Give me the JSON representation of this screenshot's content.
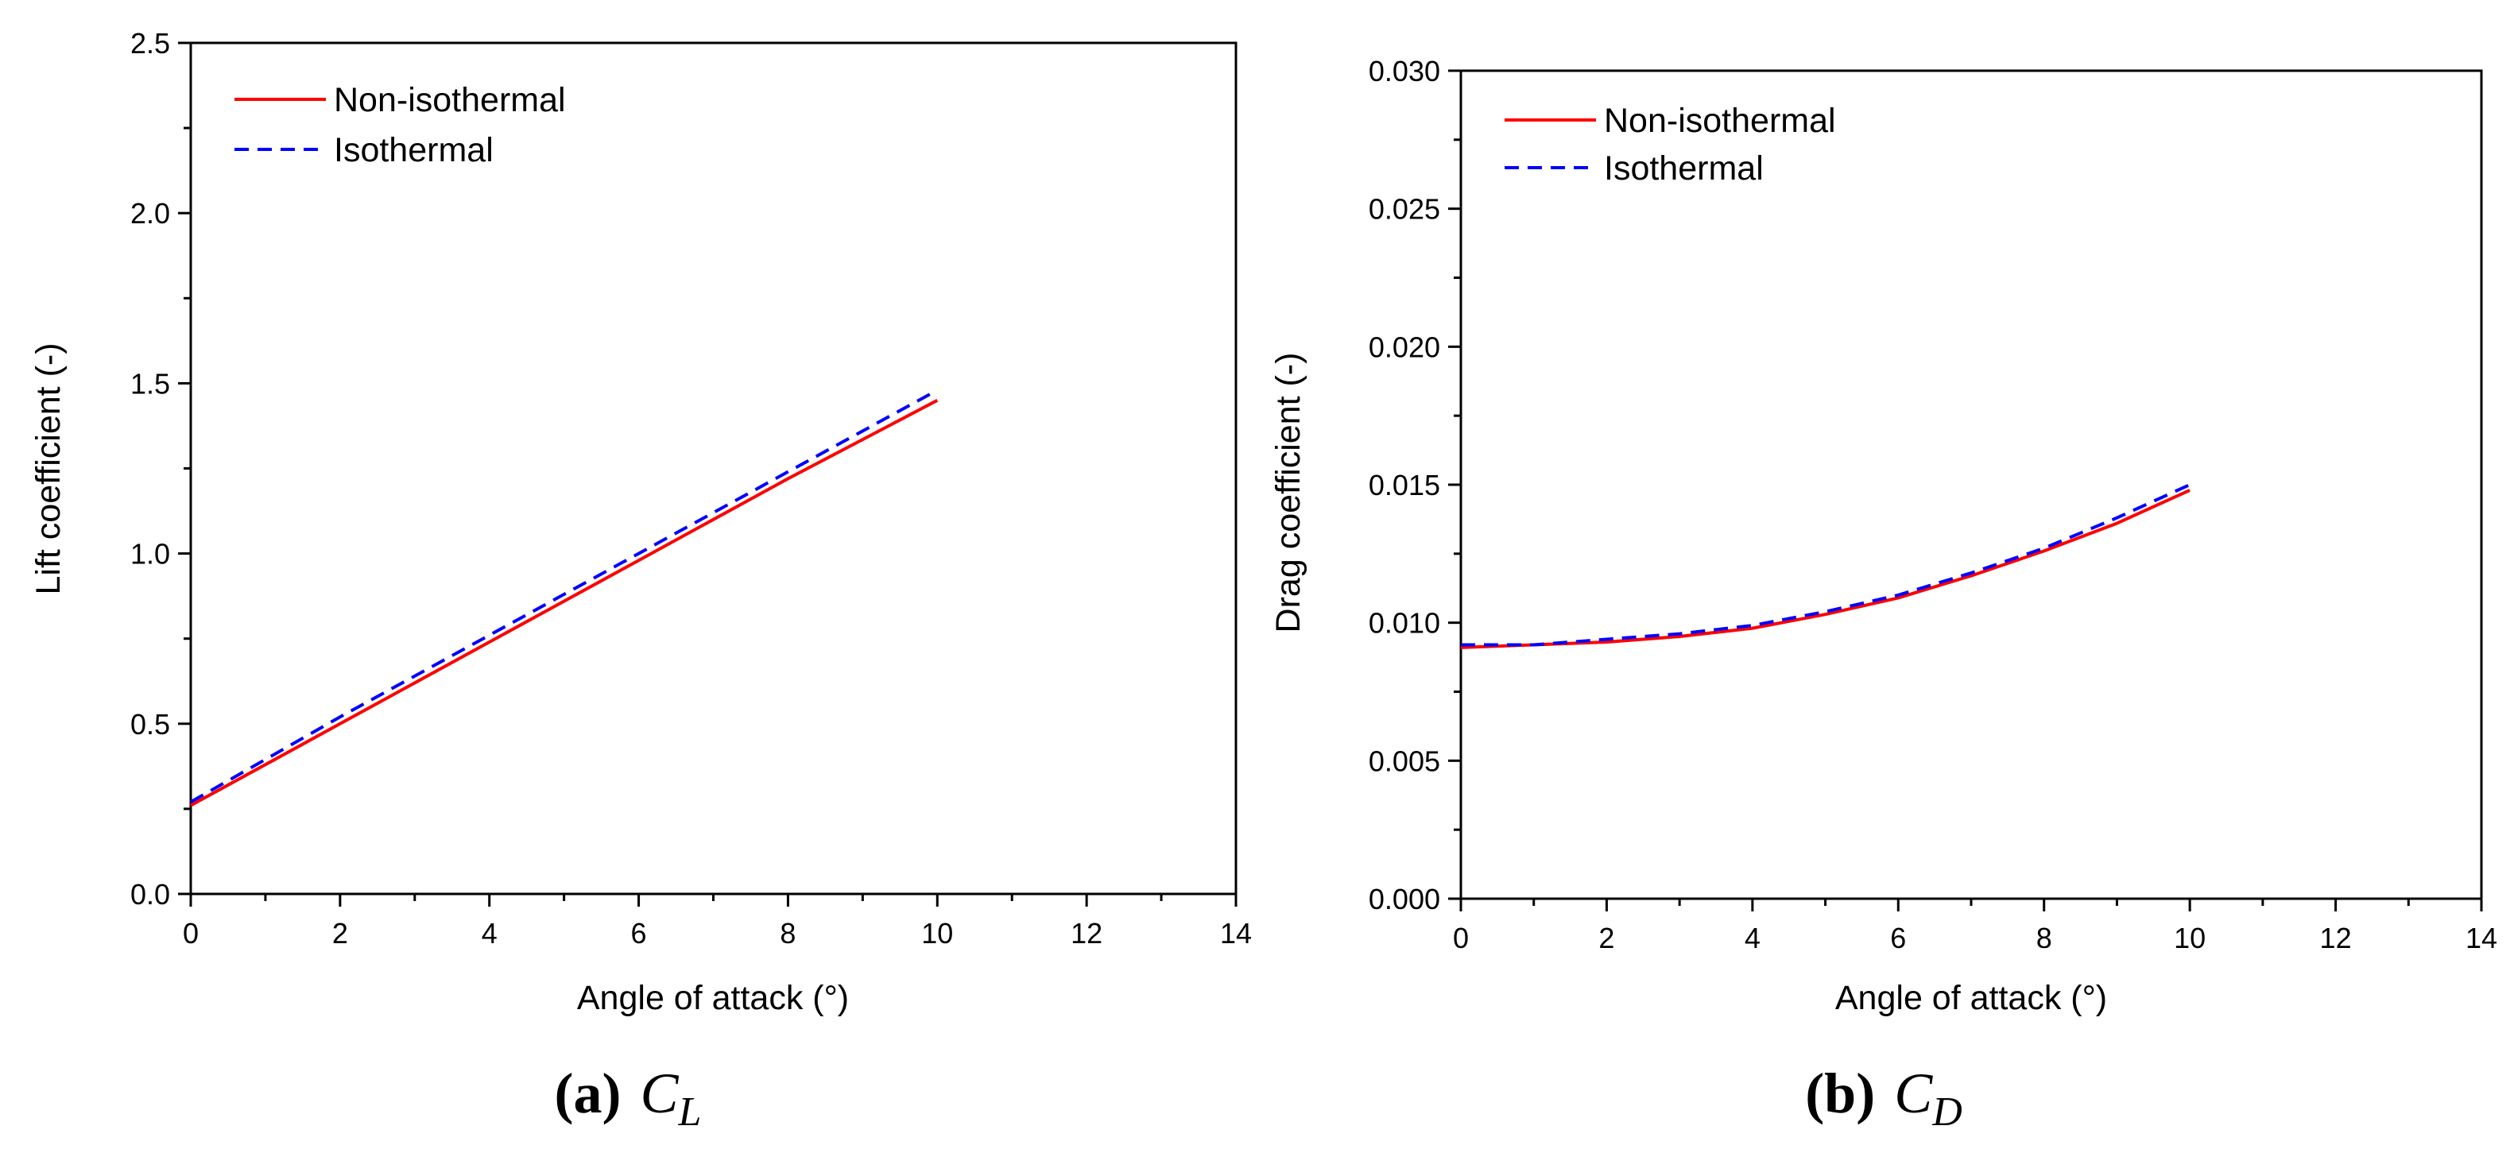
{
  "chart_data": [
    {
      "type": "line",
      "xlabel": "Angle of attack (°)",
      "ylabel": "Lift coefficient (-)",
      "xlim": [
        0,
        14
      ],
      "ylim": [
        0.0,
        2.5
      ],
      "x_ticks": [
        "0",
        "2",
        "4",
        "6",
        "8",
        "10",
        "12",
        "14"
      ],
      "y_ticks": [
        "0.0",
        "0.5",
        "1.0",
        "1.5",
        "2.0",
        "2.5"
      ],
      "legend_position": "top-left",
      "caption": {
        "letter": "(a)",
        "symbol": "C",
        "subscript": "L"
      },
      "x": [
        0,
        2,
        4,
        6,
        8,
        10
      ],
      "series": [
        {
          "name": "Non-isothermal",
          "color": "#ff0000",
          "dash": "solid",
          "values": [
            0.26,
            0.5,
            0.74,
            0.98,
            1.22,
            1.45
          ]
        },
        {
          "name": "Isothermal",
          "color": "#0000ff",
          "dash": "dashed",
          "values": [
            0.27,
            0.52,
            0.76,
            1.0,
            1.24,
            1.48
          ]
        }
      ]
    },
    {
      "type": "line",
      "xlabel": "Angle of attack (°)",
      "ylabel": "Drag coefficient (-)",
      "xlim": [
        0,
        14
      ],
      "ylim": [
        0.0,
        0.03
      ],
      "x_ticks": [
        "0",
        "2",
        "4",
        "6",
        "8",
        "10",
        "12",
        "14"
      ],
      "y_ticks": [
        "0.000",
        "0.005",
        "0.010",
        "0.015",
        "0.020",
        "0.025",
        "0.030"
      ],
      "legend_position": "top-left",
      "caption": {
        "letter": "(b)",
        "symbol": "C",
        "subscript": "D"
      },
      "x": [
        0,
        1,
        2,
        3,
        4,
        5,
        6,
        7,
        8,
        9,
        10
      ],
      "series": [
        {
          "name": "Non-isothermal",
          "color": "#ff0000",
          "dash": "solid",
          "values": [
            0.0091,
            0.0092,
            0.0093,
            0.0095,
            0.0098,
            0.0103,
            0.0109,
            0.0117,
            0.0126,
            0.0136,
            0.0148
          ]
        },
        {
          "name": "Isothermal",
          "color": "#0000ff",
          "dash": "dashed",
          "values": [
            0.0092,
            0.0092,
            0.0094,
            0.0096,
            0.0099,
            0.0104,
            0.011,
            0.0118,
            0.0127,
            0.0138,
            0.015
          ]
        }
      ]
    }
  ]
}
